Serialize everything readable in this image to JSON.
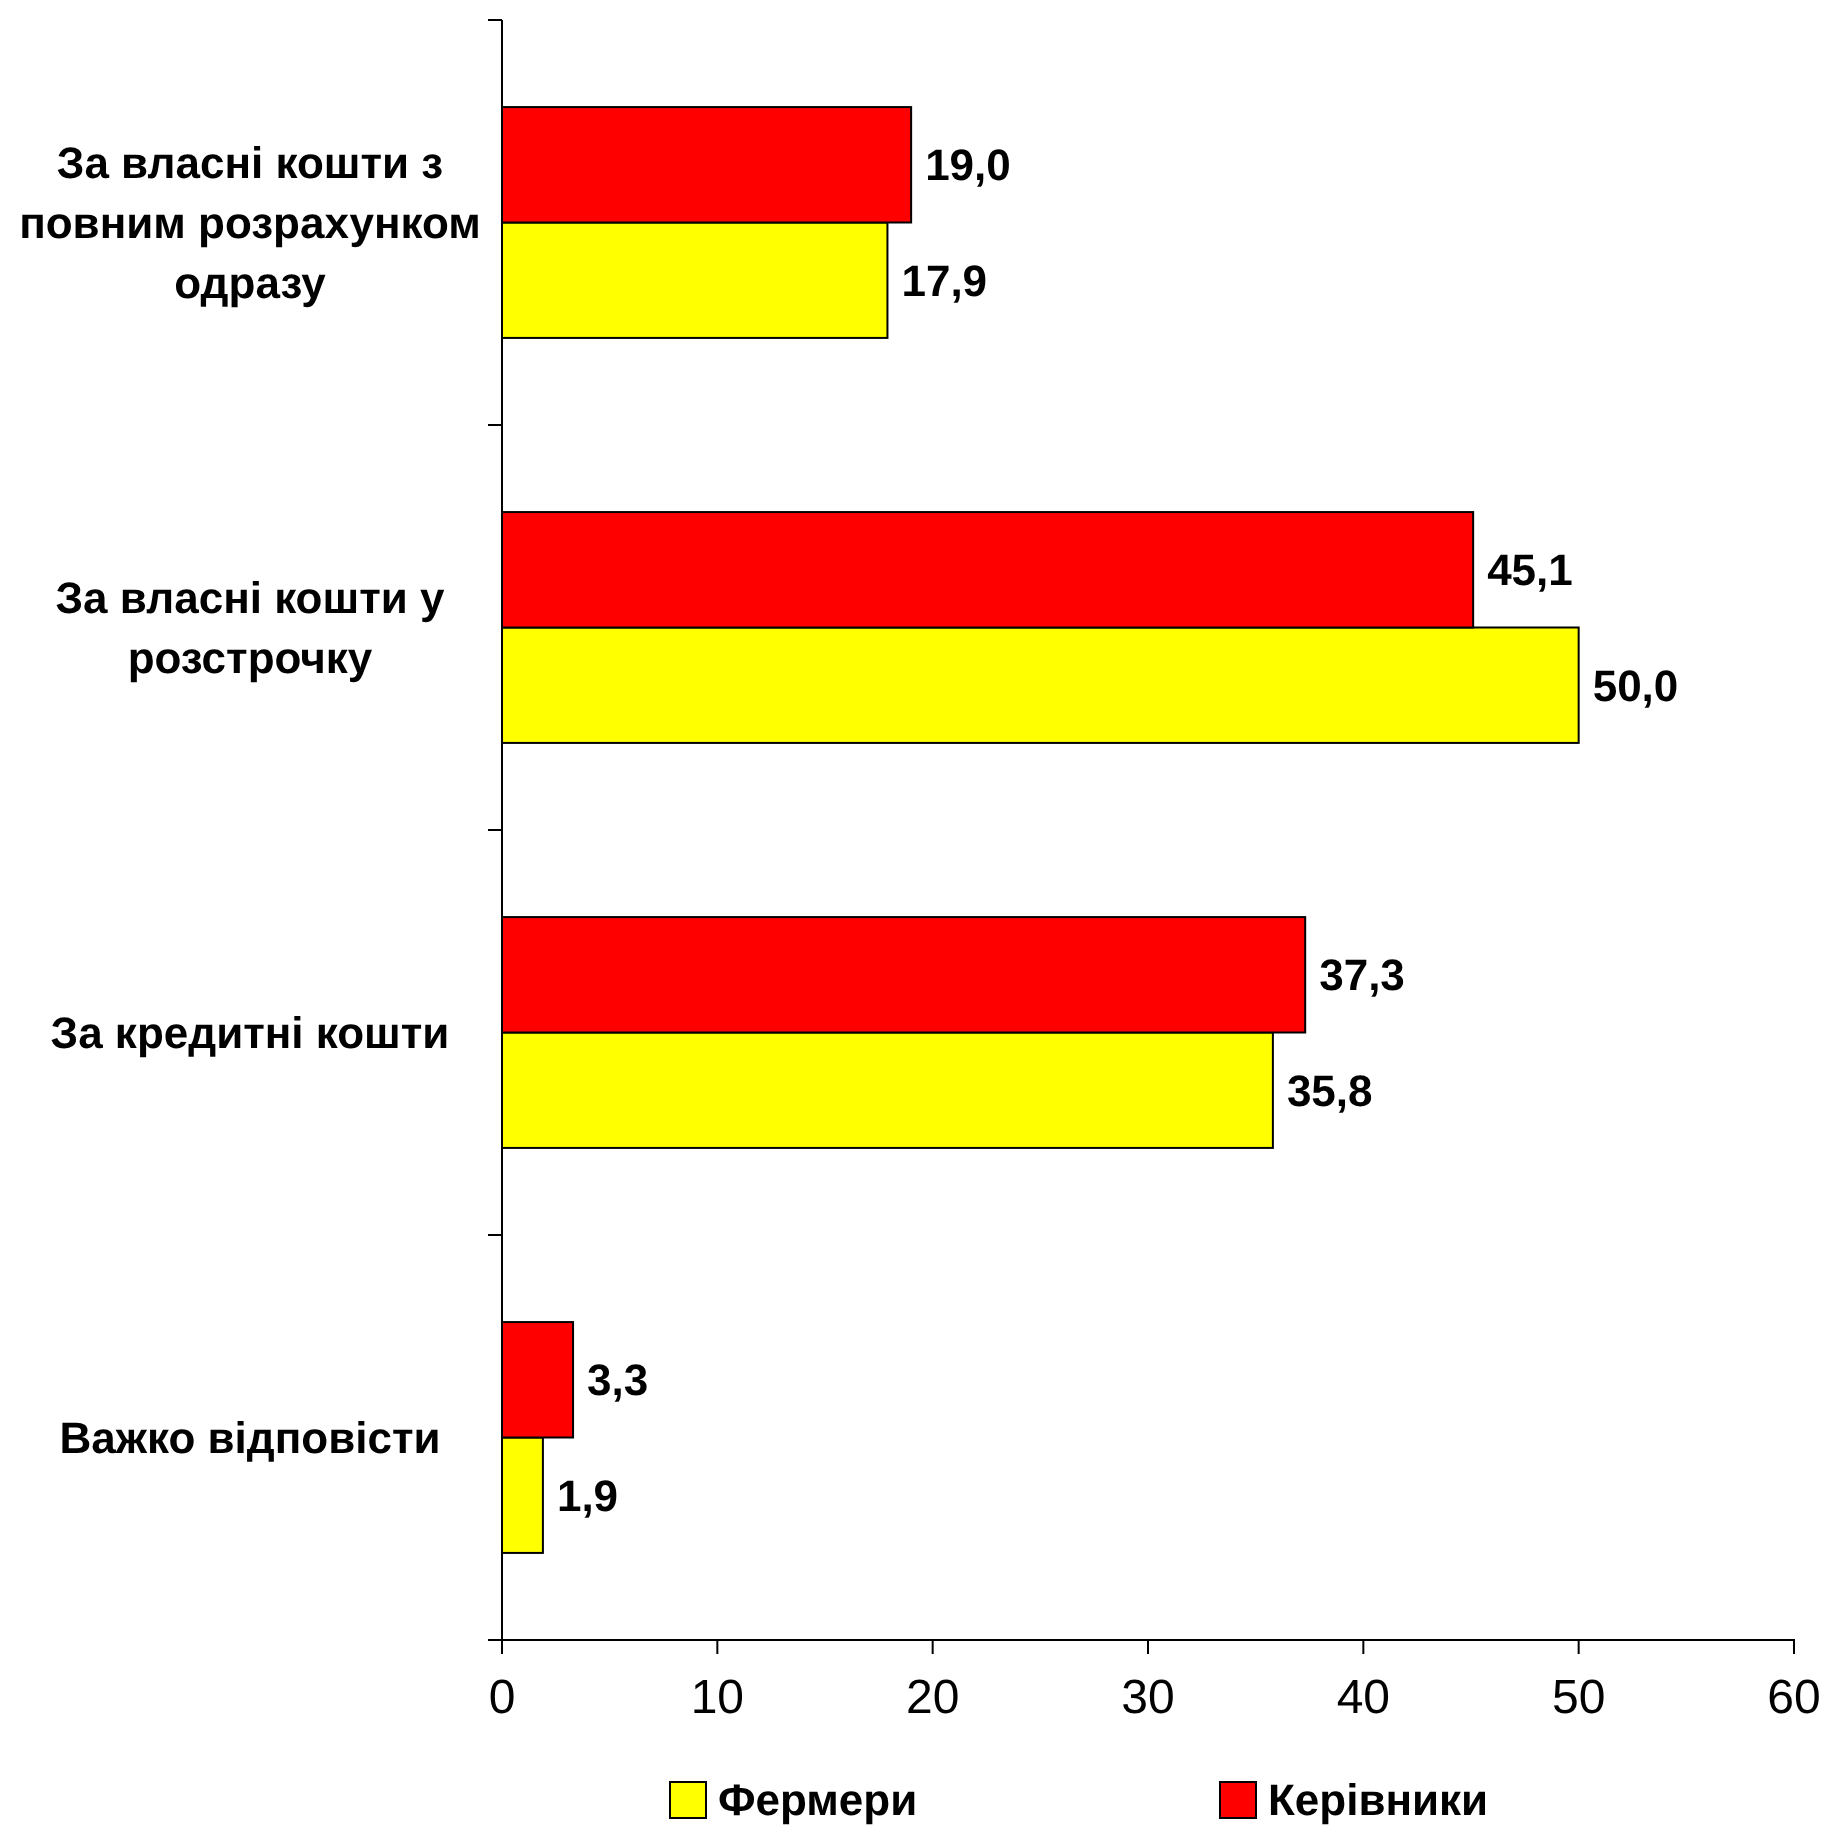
{
  "chart_data": {
    "type": "bar",
    "orientation": "horizontal",
    "categories": [
      "За власні кошти з повним розрахунком одразу",
      "За власні кошти у розстрочку",
      "За кредитні кошти",
      "Важко відповісти"
    ],
    "series": [
      {
        "name": "Фермери",
        "color": "#ffff00",
        "values": [
          17.9,
          50.0,
          35.8,
          1.9
        ],
        "value_labels": [
          "17,9",
          "50,0",
          "35,8",
          "1,9"
        ]
      },
      {
        "name": "Керівники",
        "color": "#ff0000",
        "values": [
          19.0,
          45.1,
          37.3,
          3.3
        ],
        "value_labels": [
          "19,0",
          "45,1",
          "37,3",
          "3,3"
        ]
      }
    ],
    "xlim": [
      0,
      60
    ],
    "xticks": [
      0,
      10,
      20,
      30,
      40,
      50,
      60
    ],
    "grid": false,
    "legend": "bottom"
  }
}
